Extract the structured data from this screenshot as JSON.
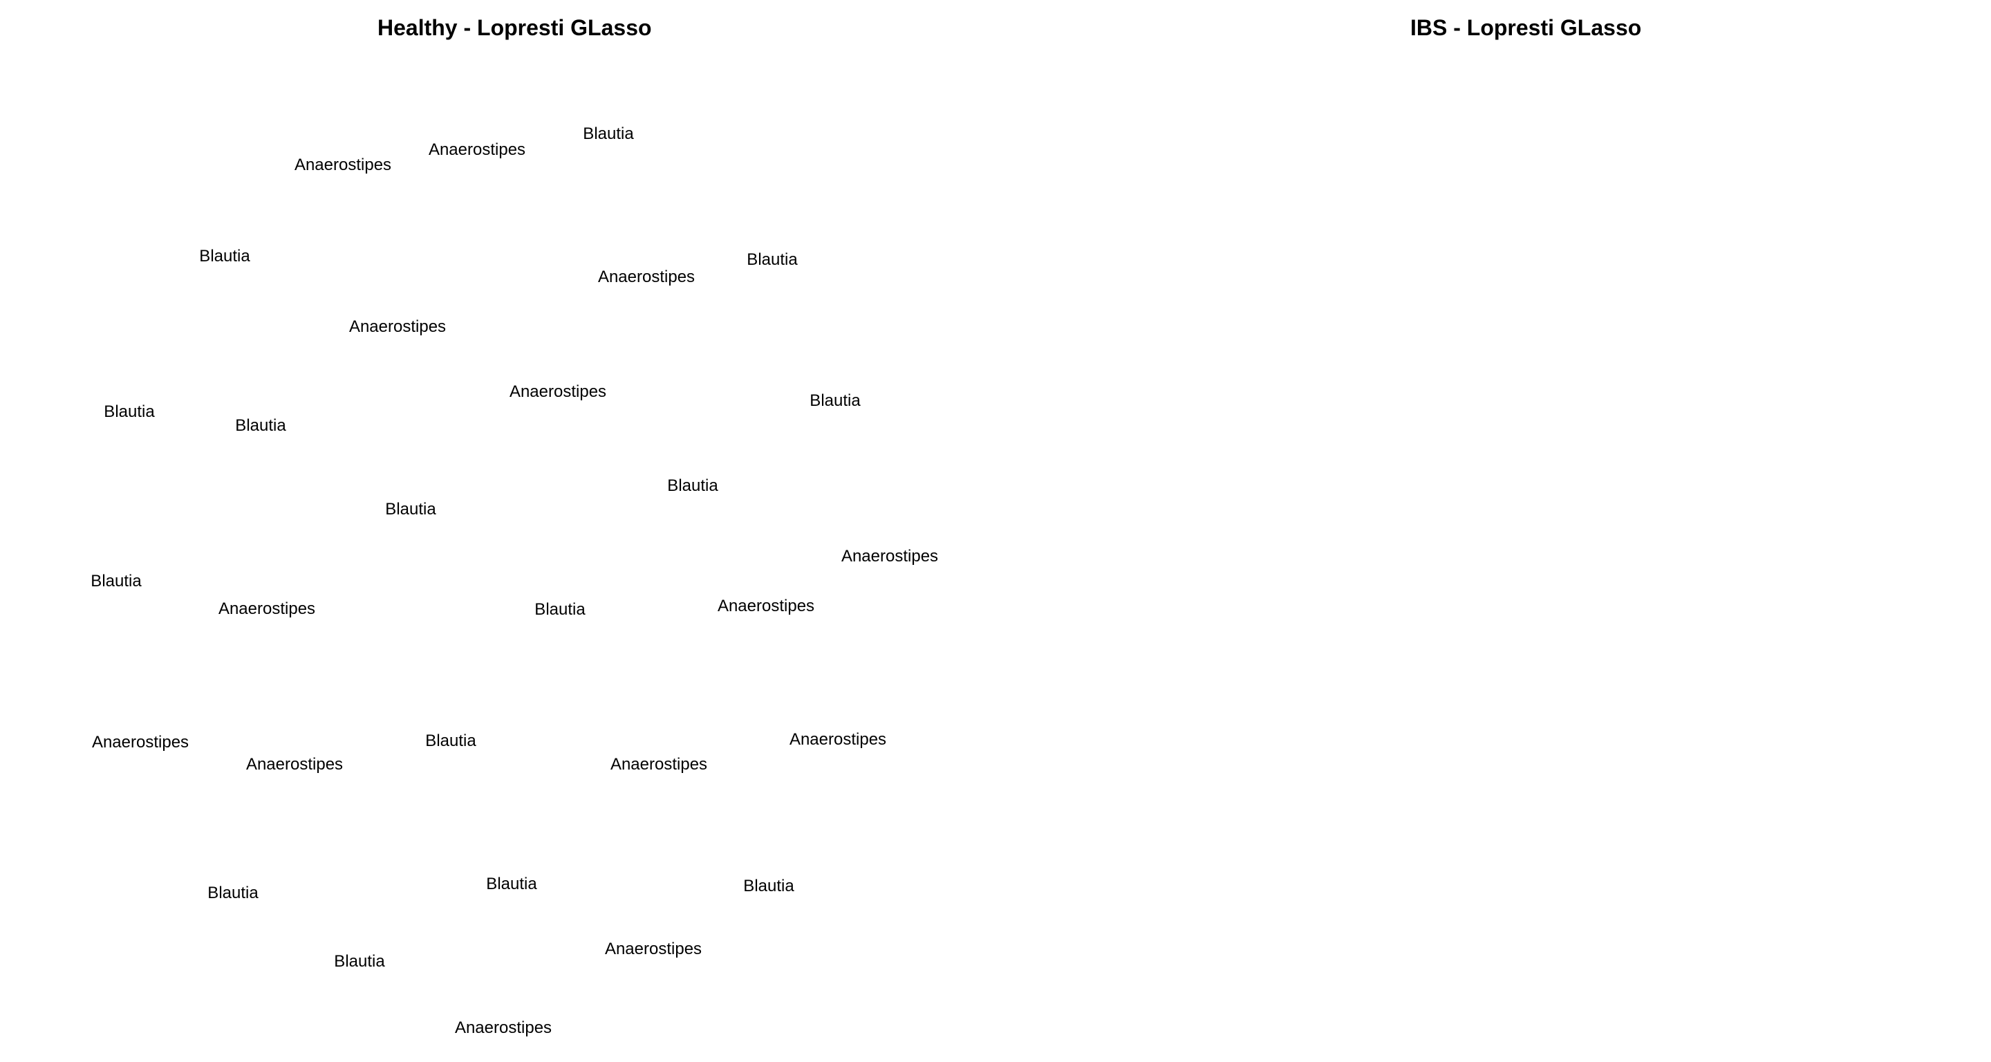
{
  "panels": [
    {
      "title": "Healthy - Lopresti GLasso",
      "nodes": [
        "Anaerostipes",
        "Anaerostipes",
        "Blautia",
        "Blautia",
        "Anaerostipes",
        "Blautia",
        "Anaerostipes",
        "Anaerostipes",
        "Blautia",
        "Blautia",
        "Blautia",
        "Blautia",
        "Blautia",
        "Anaerostipes",
        "Blautia",
        "Anaerostipes",
        "Blautia",
        "Anaerostipes",
        "Anaerostipes",
        "Anaerostipes",
        "Blautia",
        "Anaerostipes",
        "Anaerostipes",
        "Blautia",
        "Blautia",
        "Blautia",
        "Blautia",
        "Anaerostipes",
        "Anaerostipes"
      ]
    },
    {
      "title": "IBS - Lopresti GLasso",
      "nodes": []
    }
  ]
}
